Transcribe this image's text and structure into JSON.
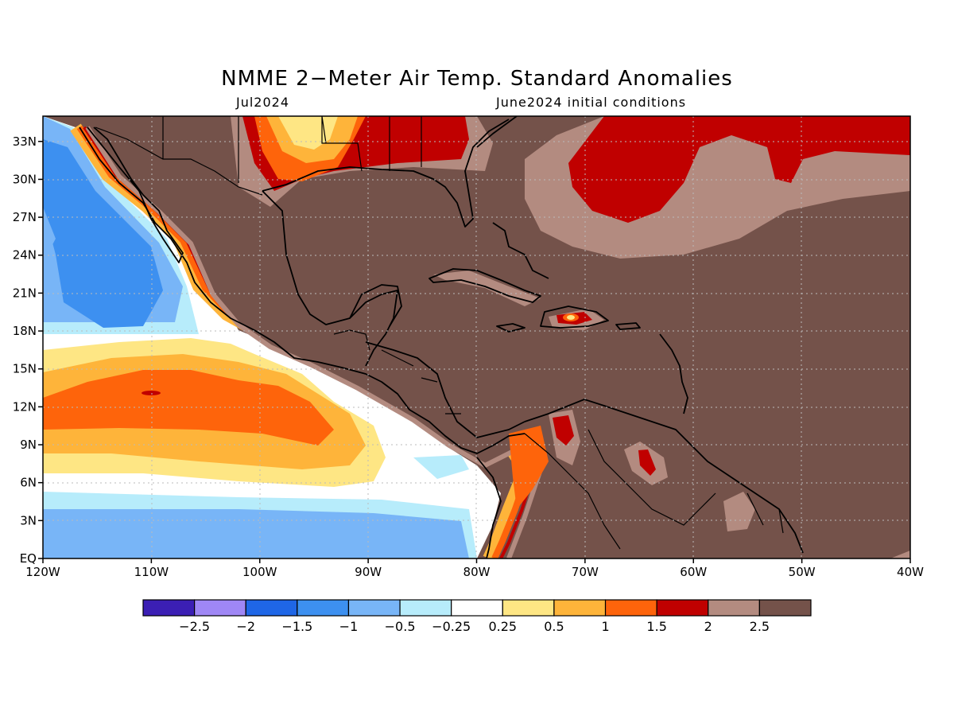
{
  "title": "NMME 2−Meter Air Temp. Standard Anomalies",
  "subtitle_left": "Jul2024",
  "subtitle_right": "June2024 initial conditions",
  "chart_data": {
    "type": "heatmap",
    "x_ticks": [
      "120W",
      "110W",
      "100W",
      "90W",
      "80W",
      "70W",
      "60W",
      "50W",
      "40W"
    ],
    "y_ticks": [
      "EQ",
      "3N",
      "6N",
      "9N",
      "12N",
      "15N",
      "18N",
      "21N",
      "24N",
      "27N",
      "30N",
      "33N"
    ],
    "xlim": [
      -120,
      -40
    ],
    "ylim": [
      0,
      35
    ],
    "grid": true,
    "colorbar": {
      "colors": [
        "#3b1fb4",
        "#9f87f5",
        "#1f66e6",
        "#3d90f0",
        "#78b5f7",
        "#b7ecfb",
        "#ffffff",
        "#fee684",
        "#feb43a",
        "#fe640b",
        "#c00000",
        "#b38b80",
        "#74524a"
      ],
      "labels": [
        "−2.5",
        "−2",
        "−1.5",
        "−1",
        "−0.5",
        "−0.25",
        "0.25",
        "0.5",
        "1",
        "1.5",
        "2",
        "2.5"
      ]
    }
  }
}
